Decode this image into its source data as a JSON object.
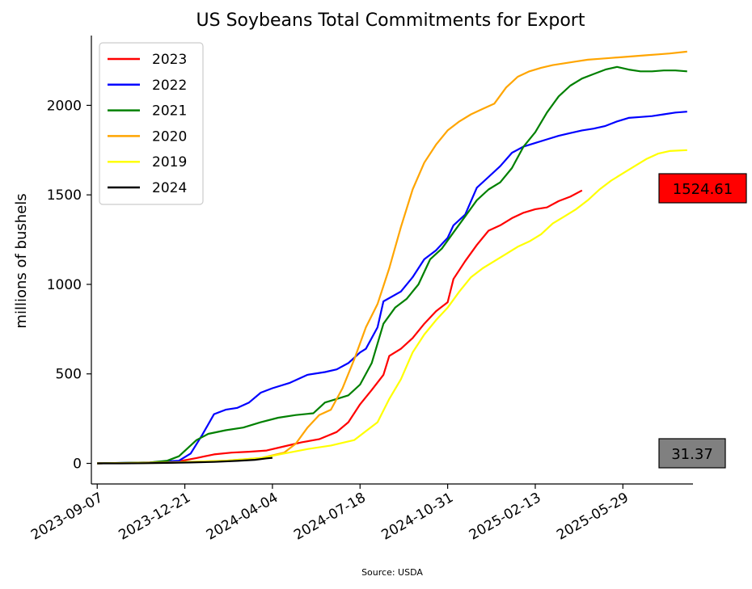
{
  "chart_data": {
    "type": "line",
    "title": "US Soybeans Total Commitments for Export",
    "xlabel": "",
    "ylabel": "millions of bushels",
    "source": "Source: USDA",
    "x_tick_labels": [
      "2023-09-07",
      "2023-12-21",
      "2024-04-04",
      "2024-07-18",
      "2024-10-31",
      "2025-02-13",
      "2025-05-29"
    ],
    "x_range": [
      "2023-08-31",
      "2025-08-21"
    ],
    "x_ticks": [
      "2023-09-07",
      "2023-12-21",
      "2024-04-04",
      "2024-07-18",
      "2024-10-31",
      "2025-02-13",
      "2025-05-29"
    ],
    "y_ticks": [
      0,
      500,
      1000,
      1500,
      2000
    ],
    "ylim": [
      -115,
      2390
    ],
    "grid": false,
    "legend_position": "top-left",
    "annotations": [
      {
        "text": "1524.61",
        "color": "#ff0000",
        "value": 1524.61
      },
      {
        "text": "31.37",
        "color": "#808080",
        "value": 31.37
      }
    ],
    "series": [
      {
        "name": "2023",
        "color": "#ff0000",
        "points": [
          [
            "2023-09-07",
            0
          ],
          [
            "2023-10-12",
            2
          ],
          [
            "2023-11-16",
            5
          ],
          [
            "2023-12-14",
            12
          ],
          [
            "2024-01-04",
            30
          ],
          [
            "2024-01-25",
            50
          ],
          [
            "2024-02-15",
            60
          ],
          [
            "2024-03-07",
            65
          ],
          [
            "2024-03-28",
            72
          ],
          [
            "2024-04-18",
            95
          ],
          [
            "2024-05-09",
            118
          ],
          [
            "2024-05-30",
            135
          ],
          [
            "2024-06-20",
            175
          ],
          [
            "2024-07-04",
            230
          ],
          [
            "2024-07-18",
            330
          ],
          [
            "2024-08-01",
            410
          ],
          [
            "2024-08-15",
            495
          ],
          [
            "2024-08-22",
            600
          ],
          [
            "2024-09-05",
            640
          ],
          [
            "2024-09-19",
            700
          ],
          [
            "2024-10-03",
            780
          ],
          [
            "2024-10-17",
            850
          ],
          [
            "2024-10-31",
            900
          ],
          [
            "2024-11-07",
            1030
          ],
          [
            "2024-11-21",
            1130
          ],
          [
            "2024-12-05",
            1220
          ],
          [
            "2024-12-19",
            1300
          ],
          [
            "2025-01-02",
            1330
          ],
          [
            "2025-01-16",
            1370
          ],
          [
            "2025-01-30",
            1400
          ],
          [
            "2025-02-13",
            1420
          ],
          [
            "2025-02-27",
            1430
          ],
          [
            "2025-03-13",
            1465
          ],
          [
            "2025-03-27",
            1490
          ],
          [
            "2025-04-10",
            1524.61
          ]
        ]
      },
      {
        "name": "2022",
        "color": "#0000ff",
        "points": [
          [
            "2023-09-07",
            0
          ],
          [
            "2023-11-09",
            5
          ],
          [
            "2023-12-14",
            15
          ],
          [
            "2023-12-28",
            55
          ],
          [
            "2024-01-11",
            160
          ],
          [
            "2024-01-25",
            275
          ],
          [
            "2024-02-08",
            300
          ],
          [
            "2024-02-22",
            310
          ],
          [
            "2024-03-07",
            340
          ],
          [
            "2024-03-21",
            395
          ],
          [
            "2024-04-04",
            420
          ],
          [
            "2024-04-25",
            450
          ],
          [
            "2024-05-16",
            495
          ],
          [
            "2024-06-06",
            510
          ],
          [
            "2024-06-20",
            525
          ],
          [
            "2024-07-04",
            560
          ],
          [
            "2024-07-18",
            620
          ],
          [
            "2024-07-25",
            640
          ],
          [
            "2024-08-08",
            760
          ],
          [
            "2024-08-15",
            905
          ],
          [
            "2024-09-05",
            960
          ],
          [
            "2024-09-19",
            1040
          ],
          [
            "2024-10-03",
            1140
          ],
          [
            "2024-10-17",
            1190
          ],
          [
            "2024-10-31",
            1260
          ],
          [
            "2024-11-07",
            1330
          ],
          [
            "2024-11-21",
            1390
          ],
          [
            "2024-12-05",
            1540
          ],
          [
            "2024-12-19",
            1600
          ],
          [
            "2025-01-02",
            1660
          ],
          [
            "2025-01-16",
            1735
          ],
          [
            "2025-01-30",
            1770
          ],
          [
            "2025-02-13",
            1790
          ],
          [
            "2025-02-27",
            1810
          ],
          [
            "2025-03-13",
            1830
          ],
          [
            "2025-03-27",
            1845
          ],
          [
            "2025-04-10",
            1860
          ],
          [
            "2025-04-24",
            1870
          ],
          [
            "2025-05-08",
            1885
          ],
          [
            "2025-05-22",
            1910
          ],
          [
            "2025-06-05",
            1930
          ],
          [
            "2025-06-19",
            1935
          ],
          [
            "2025-07-03",
            1940
          ],
          [
            "2025-07-17",
            1950
          ],
          [
            "2025-07-31",
            1960
          ],
          [
            "2025-08-14",
            1965
          ]
        ]
      },
      {
        "name": "2021",
        "color": "#008000",
        "points": [
          [
            "2023-09-07",
            0
          ],
          [
            "2023-11-09",
            5
          ],
          [
            "2023-11-30",
            15
          ],
          [
            "2023-12-14",
            40
          ],
          [
            "2024-01-04",
            130
          ],
          [
            "2024-01-18",
            165
          ],
          [
            "2024-02-08",
            185
          ],
          [
            "2024-02-29",
            200
          ],
          [
            "2024-03-21",
            230
          ],
          [
            "2024-04-11",
            255
          ],
          [
            "2024-05-02",
            270
          ],
          [
            "2024-05-23",
            280
          ],
          [
            "2024-06-06",
            340
          ],
          [
            "2024-06-20",
            360
          ],
          [
            "2024-07-04",
            380
          ],
          [
            "2024-07-18",
            440
          ],
          [
            "2024-08-01",
            560
          ],
          [
            "2024-08-15",
            780
          ],
          [
            "2024-08-29",
            870
          ],
          [
            "2024-09-12",
            920
          ],
          [
            "2024-09-26",
            1000
          ],
          [
            "2024-10-10",
            1140
          ],
          [
            "2024-10-24",
            1200
          ],
          [
            "2024-11-07",
            1290
          ],
          [
            "2024-11-21",
            1380
          ],
          [
            "2024-12-05",
            1470
          ],
          [
            "2024-12-19",
            1530
          ],
          [
            "2025-01-02",
            1570
          ],
          [
            "2025-01-16",
            1650
          ],
          [
            "2025-01-30",
            1770
          ],
          [
            "2025-02-13",
            1850
          ],
          [
            "2025-02-27",
            1960
          ],
          [
            "2025-03-13",
            2050
          ],
          [
            "2025-03-27",
            2110
          ],
          [
            "2025-04-10",
            2150
          ],
          [
            "2025-04-24",
            2175
          ],
          [
            "2025-05-08",
            2200
          ],
          [
            "2025-05-22",
            2215
          ],
          [
            "2025-06-05",
            2200
          ],
          [
            "2025-06-19",
            2190
          ],
          [
            "2025-07-03",
            2190
          ],
          [
            "2025-07-17",
            2195
          ],
          [
            "2025-07-31",
            2195
          ],
          [
            "2025-08-14",
            2190
          ]
        ]
      },
      {
        "name": "2020",
        "color": "#ffa500",
        "points": [
          [
            "2023-09-07",
            0
          ],
          [
            "2023-11-30",
            5
          ],
          [
            "2024-02-08",
            15
          ],
          [
            "2024-03-21",
            30
          ],
          [
            "2024-04-18",
            60
          ],
          [
            "2024-05-02",
            110
          ],
          [
            "2024-05-16",
            200
          ],
          [
            "2024-05-30",
            270
          ],
          [
            "2024-06-13",
            300
          ],
          [
            "2024-06-27",
            420
          ],
          [
            "2024-07-11",
            580
          ],
          [
            "2024-07-25",
            760
          ],
          [
            "2024-08-08",
            890
          ],
          [
            "2024-08-22",
            1090
          ],
          [
            "2024-09-05",
            1320
          ],
          [
            "2024-09-19",
            1530
          ],
          [
            "2024-10-03",
            1680
          ],
          [
            "2024-10-17",
            1780
          ],
          [
            "2024-10-31",
            1860
          ],
          [
            "2024-11-14",
            1910
          ],
          [
            "2024-11-28",
            1950
          ],
          [
            "2024-12-12",
            1980
          ],
          [
            "2024-12-26",
            2010
          ],
          [
            "2025-01-09",
            2100
          ],
          [
            "2025-01-23",
            2160
          ],
          [
            "2025-02-06",
            2190
          ],
          [
            "2025-02-20",
            2210
          ],
          [
            "2025-03-06",
            2225
          ],
          [
            "2025-03-20",
            2235
          ],
          [
            "2025-04-03",
            2245
          ],
          [
            "2025-04-17",
            2255
          ],
          [
            "2025-05-01",
            2260
          ],
          [
            "2025-05-15",
            2265
          ],
          [
            "2025-05-29",
            2270
          ],
          [
            "2025-06-12",
            2275
          ],
          [
            "2025-06-26",
            2280
          ],
          [
            "2025-07-10",
            2285
          ],
          [
            "2025-07-24",
            2290
          ],
          [
            "2025-08-14",
            2300
          ]
        ]
      },
      {
        "name": "2019",
        "color": "#ffff00",
        "points": [
          [
            "2023-09-07",
            0
          ],
          [
            "2023-11-30",
            3
          ],
          [
            "2024-02-08",
            15
          ],
          [
            "2024-03-21",
            30
          ],
          [
            "2024-04-18",
            55
          ],
          [
            "2024-05-16",
            80
          ],
          [
            "2024-06-13",
            100
          ],
          [
            "2024-07-11",
            130
          ],
          [
            "2024-07-25",
            180
          ],
          [
            "2024-08-08",
            230
          ],
          [
            "2024-08-22",
            360
          ],
          [
            "2024-09-05",
            470
          ],
          [
            "2024-09-19",
            620
          ],
          [
            "2024-10-03",
            720
          ],
          [
            "2024-10-17",
            800
          ],
          [
            "2024-10-31",
            870
          ],
          [
            "2024-11-14",
            960
          ],
          [
            "2024-11-28",
            1040
          ],
          [
            "2024-12-12",
            1090
          ],
          [
            "2024-12-26",
            1130
          ],
          [
            "2025-01-09",
            1170
          ],
          [
            "2025-01-23",
            1210
          ],
          [
            "2025-02-06",
            1240
          ],
          [
            "2025-02-20",
            1280
          ],
          [
            "2025-03-06",
            1340
          ],
          [
            "2025-03-20",
            1380
          ],
          [
            "2025-04-03",
            1420
          ],
          [
            "2025-04-17",
            1470
          ],
          [
            "2025-05-01",
            1530
          ],
          [
            "2025-05-15",
            1580
          ],
          [
            "2025-05-29",
            1620
          ],
          [
            "2025-06-12",
            1660
          ],
          [
            "2025-06-26",
            1700
          ],
          [
            "2025-07-10",
            1730
          ],
          [
            "2025-07-24",
            1745
          ],
          [
            "2025-08-14",
            1750
          ]
        ]
      },
      {
        "name": "2024",
        "color": "#000000",
        "points": [
          [
            "2023-09-07",
            0
          ],
          [
            "2023-10-05",
            0
          ],
          [
            "2023-11-02",
            1
          ],
          [
            "2023-11-30",
            3
          ],
          [
            "2023-12-28",
            5
          ],
          [
            "2024-01-25",
            8
          ],
          [
            "2024-02-22",
            14
          ],
          [
            "2024-03-14",
            20
          ],
          [
            "2024-03-28",
            28
          ],
          [
            "2024-04-04",
            31.37
          ]
        ]
      }
    ]
  }
}
